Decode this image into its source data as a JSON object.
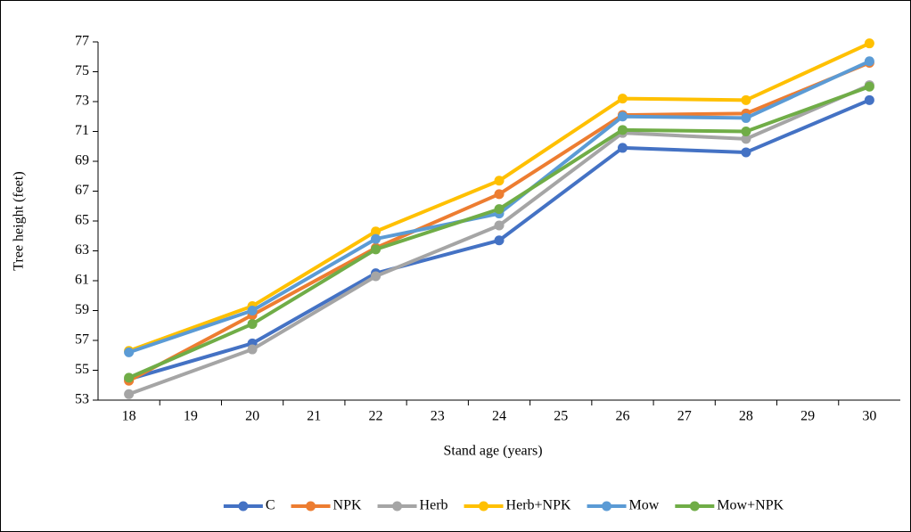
{
  "chart_data": {
    "type": "line",
    "xlabel": "Stand age (years)",
    "ylabel": "Tree height (feet)",
    "x": [
      18,
      20,
      22,
      24,
      26,
      28,
      30
    ],
    "xlim": [
      17.5,
      30.5
    ],
    "xticks": [
      18,
      19,
      20,
      21,
      22,
      23,
      24,
      25,
      26,
      27,
      28,
      29,
      30
    ],
    "ylim": [
      53,
      77
    ],
    "yticks": [
      53,
      55,
      57,
      59,
      61,
      63,
      65,
      67,
      69,
      71,
      73,
      75,
      77
    ],
    "grid": false,
    "legend": "bottom",
    "series": [
      {
        "name": "C",
        "color": "#4472c4",
        "values": [
          54.4,
          56.8,
          61.5,
          63.7,
          69.9,
          69.6,
          73.1
        ]
      },
      {
        "name": "NPK",
        "color": "#ed7d31",
        "values": [
          54.3,
          58.7,
          63.2,
          66.8,
          72.1,
          72.2,
          75.6
        ]
      },
      {
        "name": "Herb",
        "color": "#a5a5a5",
        "values": [
          53.4,
          56.4,
          61.3,
          64.7,
          70.9,
          70.5,
          74.1
        ]
      },
      {
        "name": "Herb+NPK",
        "color": "#ffc000",
        "values": [
          56.3,
          59.3,
          64.3,
          67.7,
          73.2,
          73.1,
          76.9
        ]
      },
      {
        "name": "Mow",
        "color": "#5b9bd5",
        "values": [
          56.2,
          59.0,
          63.8,
          65.5,
          72.0,
          71.9,
          75.7
        ]
      },
      {
        "name": "Mow+NPK",
        "color": "#70ad47",
        "values": [
          54.5,
          58.1,
          63.1,
          65.8,
          71.1,
          71.0,
          74.0
        ]
      }
    ]
  }
}
